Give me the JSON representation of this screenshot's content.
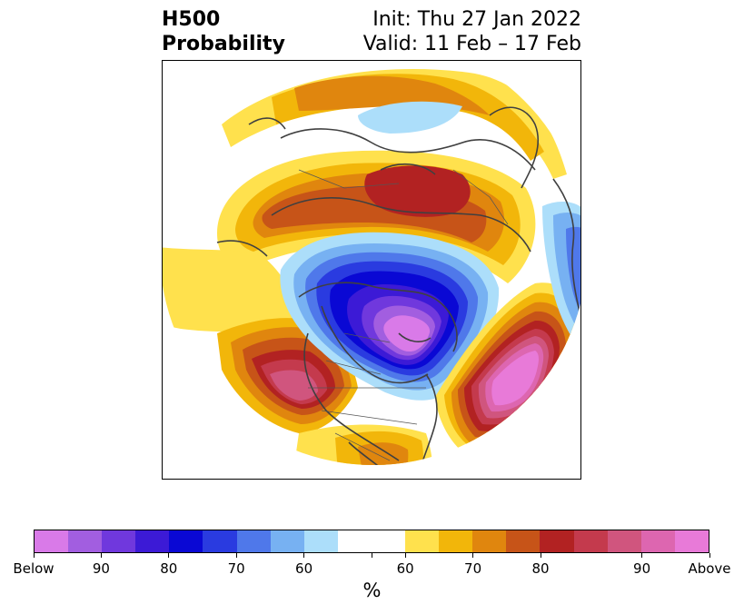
{
  "title": {
    "left_line1": "H500",
    "left_line2": "Probability",
    "right_line1": "Init: Thu 27 Jan 2022",
    "right_line2": "Valid: 11 Feb – 17 Feb"
  },
  "colorbar": {
    "units": "%",
    "colors": [
      "#d97ae8",
      "#a25ee0",
      "#7038dd",
      "#3c1ad6",
      "#0a08d4",
      "#2a3be0",
      "#4f78ea",
      "#77b1f2",
      "#acdefa",
      "#ffffff",
      "#ffffff",
      "#ffe14d",
      "#f2b60a",
      "#e0860e",
      "#c75418",
      "#b22222",
      "#c43a4d",
      "#d0557e",
      "#dd66b0",
      "#e87ad8"
    ],
    "labels": [
      "Below",
      "90",
      "80",
      "70",
      "60",
      "60",
      "70",
      "80",
      "90",
      "Above"
    ]
  },
  "map": {
    "projection": "north-polar-stereographic",
    "colors": {
      "yellow": "#ffe14d",
      "gold": "#f2b60a",
      "orange": "#e0860e",
      "burnt": "#c75418",
      "red": "#b22222",
      "crimson": "#c43a4d",
      "rose": "#d0557e",
      "pink": "#dd66b0",
      "magenta": "#e87ad8",
      "lightblue": "#acdefa",
      "skyblue": "#77b1f2",
      "cornflower": "#4f78ea",
      "blue": "#2a3be0",
      "deepblue": "#0a08d4",
      "indigo": "#3c1ad6",
      "violet": "#7038dd",
      "purple": "#a25ee0",
      "orchid": "#d97ae8",
      "coast": "#404040"
    }
  }
}
